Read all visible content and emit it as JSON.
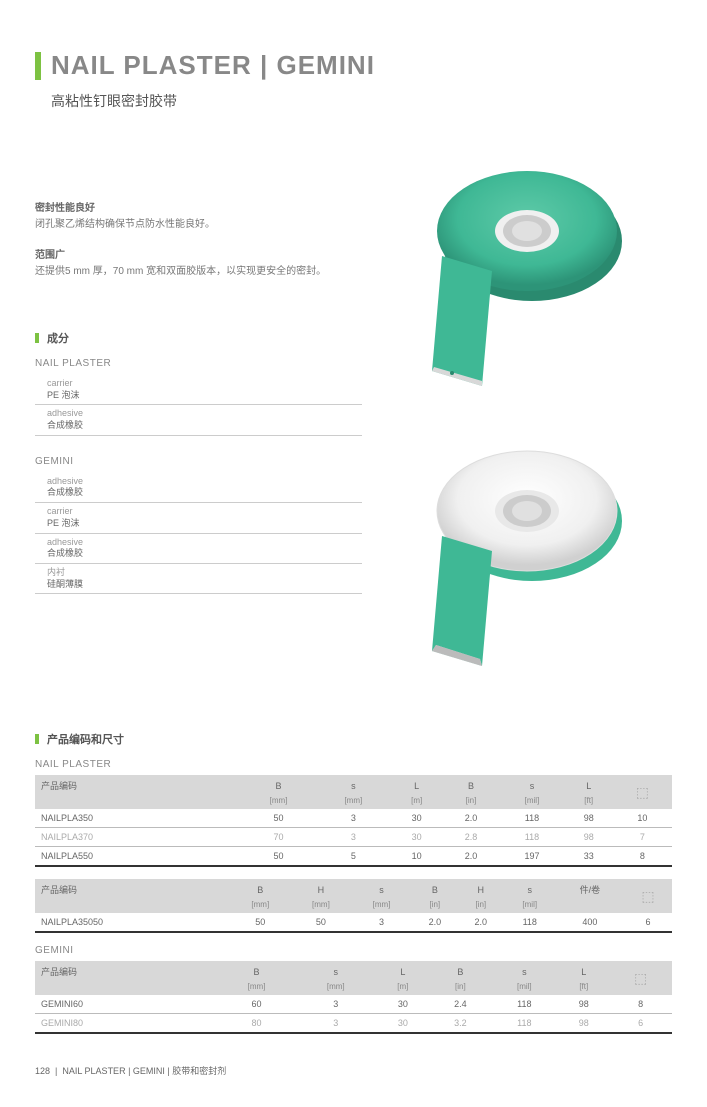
{
  "header": {
    "title": "NAIL PLASTER | GEMINI",
    "subtitle": "高粘性钉眼密封胶带"
  },
  "features": [
    {
      "title": "密封性能良好",
      "body": "闭孔聚乙烯结构确保节点防水性能良好。"
    },
    {
      "title": "范围广",
      "body": "还提供5 mm 厚，70 mm 宽和双面胶版本，以实现更安全的密封。"
    }
  ],
  "composition_title": "成分",
  "composition": {
    "groups": [
      {
        "name": "NAIL PLASTER",
        "items": [
          {
            "label": "carrier",
            "value": "PE 泡沫"
          },
          {
            "label": "adhesive",
            "value": "合成橡胶"
          }
        ]
      },
      {
        "name": "GEMINI",
        "items": [
          {
            "label": "adhesive",
            "value": "合成橡胶"
          },
          {
            "label": "carrier",
            "value": "PE 泡沫"
          },
          {
            "label": "adhesive",
            "value": "合成橡胶"
          },
          {
            "label": "内衬",
            "value": "硅酮薄膜"
          }
        ]
      }
    ]
  },
  "tables_title": "产品编码和尺寸",
  "tables": {
    "np1": {
      "label": "NAIL PLASTER",
      "head1": [
        "产品编码",
        "B",
        "s",
        "L",
        "B",
        "s",
        "L",
        ""
      ],
      "head2": [
        "",
        "[mm]",
        "[mm]",
        "[m]",
        "[in]",
        "[mil]",
        "[ft]",
        ""
      ],
      "rows": [
        [
          "NAILPLA350",
          "50",
          "3",
          "30",
          "2.0",
          "118",
          "98",
          "10"
        ],
        [
          "NAILPLA370",
          "70",
          "3",
          "30",
          "2.8",
          "118",
          "98",
          "7"
        ],
        [
          "NAILPLA550",
          "50",
          "5",
          "10",
          "2.0",
          "197",
          "33",
          "8"
        ]
      ]
    },
    "np2": {
      "head1": [
        "产品编码",
        "B",
        "H",
        "s",
        "B",
        "H",
        "s",
        "件/卷",
        ""
      ],
      "head2": [
        "",
        "[mm]",
        "[mm]",
        "[mm]",
        "[in]",
        "[in]",
        "[mil]",
        "",
        ""
      ],
      "rows": [
        [
          "NAILPLA35050",
          "50",
          "50",
          "3",
          "2.0",
          "2.0",
          "118",
          "400",
          "6"
        ]
      ]
    },
    "gem": {
      "label": "GEMINI",
      "head1": [
        "产品编码",
        "B",
        "s",
        "L",
        "B",
        "s",
        "L",
        ""
      ],
      "head2": [
        "",
        "[mm]",
        "[mm]",
        "[m]",
        "[in]",
        "[mil]",
        "[ft]",
        ""
      ],
      "rows": [
        [
          "GEMINI60",
          "60",
          "3",
          "30",
          "2.4",
          "118",
          "98",
          "8"
        ],
        [
          "GEMINI80",
          "80",
          "3",
          "30",
          "3.2",
          "118",
          "98",
          "6"
        ]
      ]
    }
  },
  "footer": {
    "page": "128",
    "path": "NAIL PLASTER | GEMINI  |  胶带和密封剂"
  },
  "colors": {
    "accent": "#7dc242",
    "tape_green": "#3fb895",
    "tape_dark": "#2d9478",
    "tape_light": "#e8e8e8"
  }
}
